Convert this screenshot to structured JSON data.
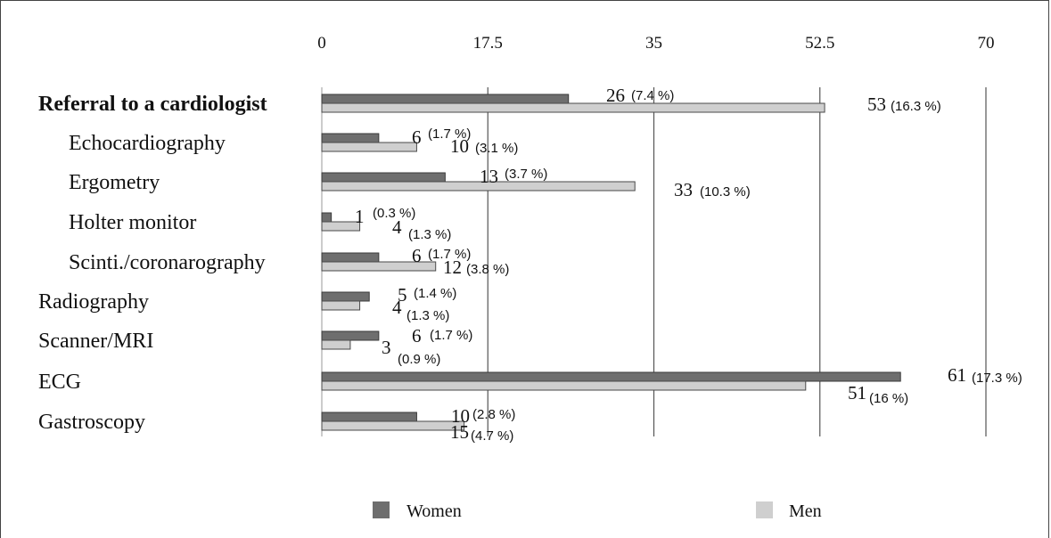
{
  "chart_data": {
    "type": "bar",
    "orientation": "horizontal",
    "xlim": [
      0,
      70
    ],
    "ticks": [
      "0",
      "17.5",
      "35",
      "52.5",
      "70"
    ],
    "tick_values": [
      0,
      17.5,
      35,
      52.5,
      70
    ],
    "grid": true,
    "legend_position": "bottom",
    "categories": [
      "Referral to a cardiologist",
      "Echocardiography",
      "Ergometry",
      "Holter monitor",
      "Scinti./coronarography",
      "Radiography",
      "Scanner/MRI",
      "ECG",
      "Gastroscopy"
    ],
    "category_bold": [
      true,
      false,
      false,
      false,
      false,
      false,
      false,
      false,
      false
    ],
    "category_indented": [
      false,
      true,
      true,
      true,
      true,
      false,
      false,
      false,
      false
    ],
    "series": [
      {
        "name": "Women",
        "color": "#6e6e6e",
        "values": [
          26,
          6,
          13,
          1,
          6,
          5,
          6,
          61,
          10
        ],
        "percent_labels": [
          "(7.4 %)",
          "(1.7 %)",
          "(3.7 %)",
          "(0.3 %)",
          "(1.7 %)",
          "(1.4 %)",
          "(1.7 %)",
          "(17.3 %)",
          "(2.8 %)"
        ]
      },
      {
        "name": "Men",
        "color": "#cfcfcf",
        "values": [
          53,
          10,
          33,
          4,
          12,
          4,
          3,
          51,
          15
        ],
        "percent_labels": [
          "(16.3 %)",
          "(3.1 %)",
          "(10.3 %)",
          "(1.3 %)",
          "(3.8 %)",
          "(1.3 %)",
          "(0.9 %)",
          "(16 %)",
          "(4.7 %)"
        ]
      }
    ]
  }
}
